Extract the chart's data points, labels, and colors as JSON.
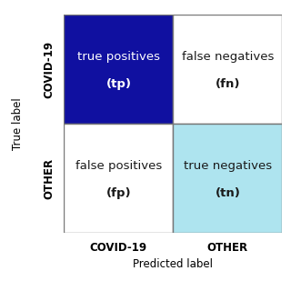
{
  "cells": [
    {
      "row": 0,
      "col": 0,
      "label1": "true positives",
      "label2": "(tp)",
      "bg_color": "#1010a0",
      "text_color": "#ffffff"
    },
    {
      "row": 0,
      "col": 1,
      "label1": "false negatives",
      "label2": "(fn)",
      "bg_color": "#ffffff",
      "text_color": "#1a1a1a"
    },
    {
      "row": 1,
      "col": 0,
      "label1": "false positives",
      "label2": "(fp)",
      "bg_color": "#ffffff",
      "text_color": "#1a1a1a"
    },
    {
      "row": 1,
      "col": 1,
      "label1": "true negatives",
      "label2": "(tn)",
      "bg_color": "#aee4ef",
      "text_color": "#1a1a1a"
    }
  ],
  "x_category_labels": [
    "COVID-19",
    "OTHER"
  ],
  "y_category_labels": [
    "COVID-19",
    "OTHER"
  ],
  "xlabel": "Predicted label",
  "ylabel": "True label",
  "cell_fontsize": 9.5,
  "abbr_fontsize": 9.5,
  "axis_label_fontsize": 8.5,
  "cat_label_fontsize": 8.5,
  "background_color": "#ffffff",
  "border_color": "#777777"
}
